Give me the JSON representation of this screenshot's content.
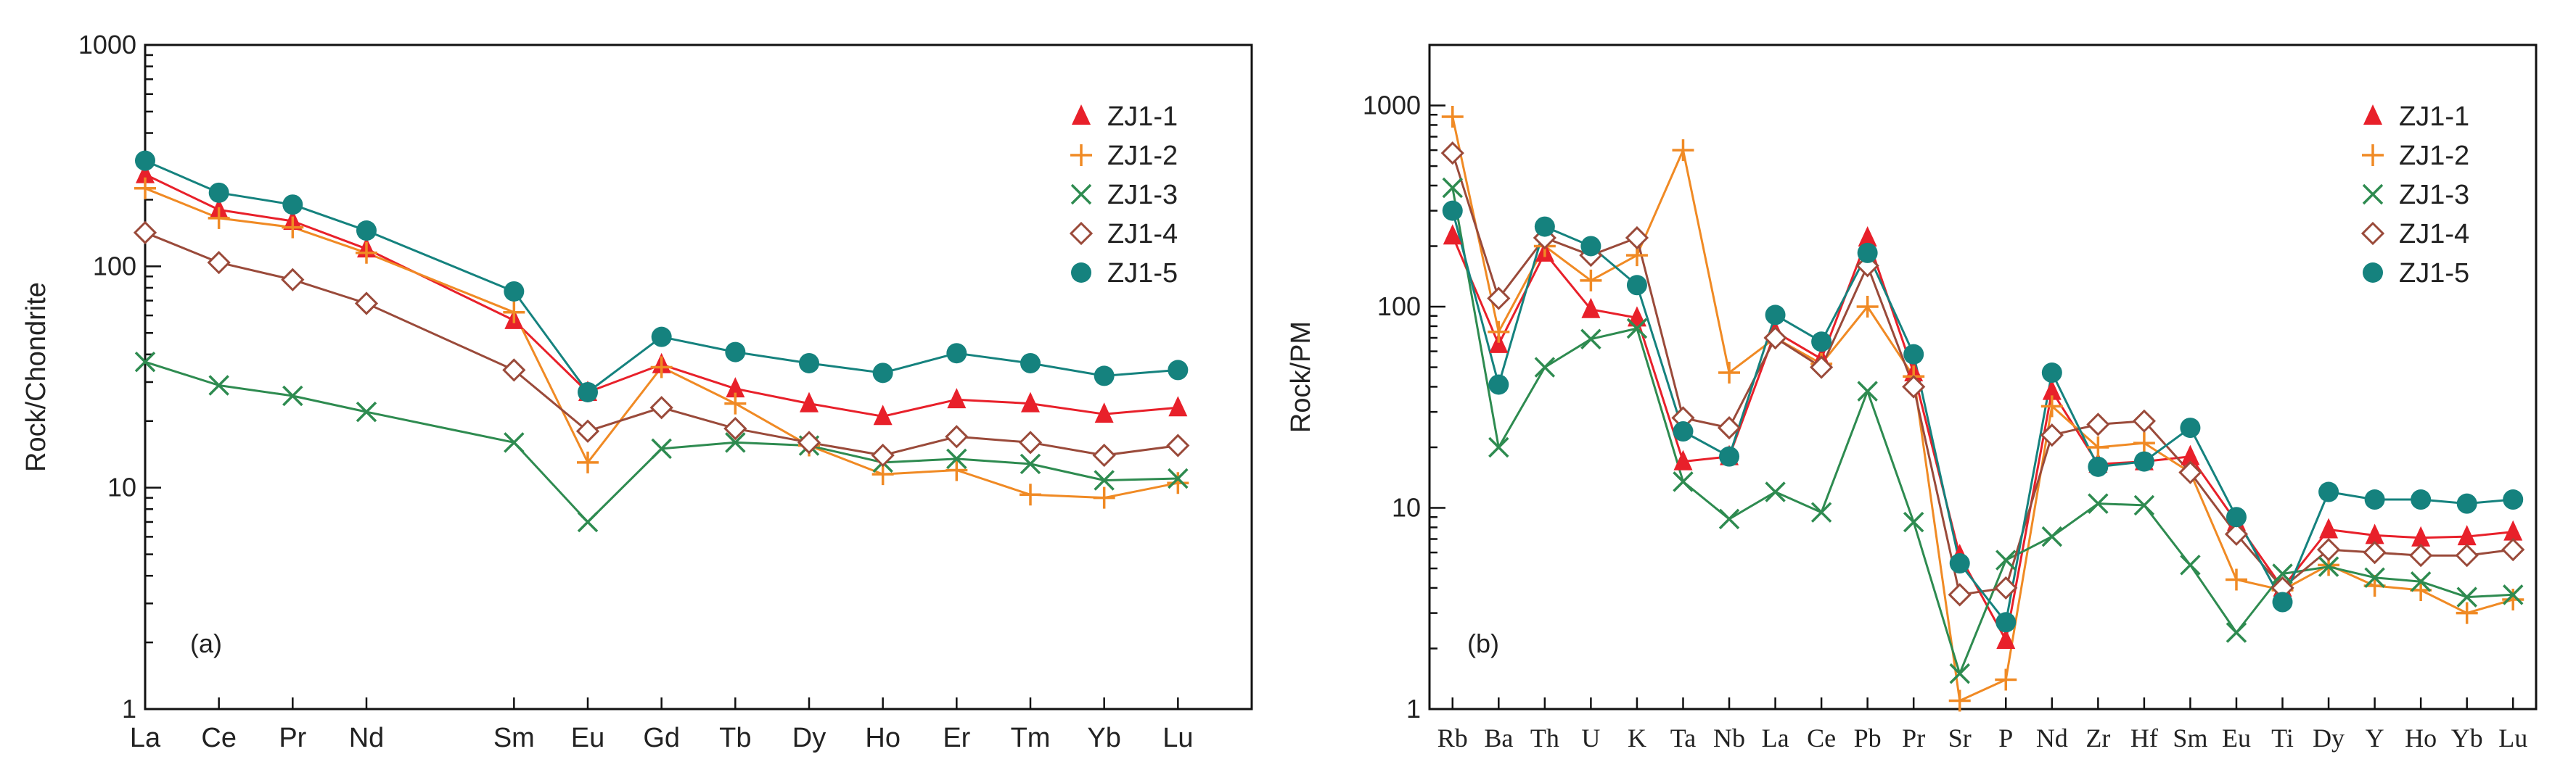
{
  "colors": {
    "ZJ1-1": "#e8202a",
    "ZJ1-2": "#f08a24",
    "ZJ1-3": "#2e8b50",
    "ZJ1-4": "#9a4a3a",
    "ZJ1-5": "#15827e"
  },
  "chart_data": [
    {
      "type": "line",
      "panel": "(a)",
      "ylabel": "Rock/Chondrite",
      "yscale": "log",
      "ylim": [
        1,
        1000
      ],
      "yticks": [
        "1",
        "10",
        "100",
        "1000"
      ],
      "categories": [
        "La",
        "Ce",
        "Pr",
        "Nd",
        "Sm",
        "Eu",
        "Gd",
        "Tb",
        "Dy",
        "Ho",
        "Er",
        "Tm",
        "Yb",
        "Lu"
      ],
      "category_positions": [
        1,
        2,
        3,
        4,
        6,
        7,
        8,
        9,
        10,
        11,
        12,
        13,
        14,
        15
      ],
      "legend_position": "top-right",
      "series": [
        {
          "name": "ZJ1-1",
          "marker": "triangle",
          "values": [
            260,
            180,
            160,
            120,
            57,
            27,
            36,
            28,
            24,
            21,
            25,
            24,
            21.5,
            23
          ]
        },
        {
          "name": "ZJ1-2",
          "marker": "plus",
          "values": [
            225,
            165,
            150,
            115,
            62,
            13,
            35,
            24,
            15.5,
            11.5,
            12,
            9.3,
            9,
            10.5
          ]
        },
        {
          "name": "ZJ1-3",
          "marker": "x",
          "values": [
            37,
            29,
            26,
            22,
            16,
            7,
            15,
            16,
            15.5,
            13,
            13.5,
            12.8,
            10.8,
            11
          ]
        },
        {
          "name": "ZJ1-4",
          "marker": "diamond",
          "values": [
            142,
            104,
            87,
            68,
            34,
            18,
            23,
            18.5,
            16,
            14,
            17,
            16,
            14,
            15.5
          ]
        },
        {
          "name": "ZJ1-5",
          "marker": "circle",
          "values": [
            300,
            215,
            190,
            145,
            77,
            27,
            48,
            41,
            36.5,
            33,
            40.5,
            36.5,
            32,
            34
          ]
        }
      ]
    },
    {
      "type": "line",
      "panel": "(b)",
      "ylabel": "Rock/PM",
      "yscale": "log",
      "ylim": [
        1,
        2000
      ],
      "yticks": [
        "1",
        "10",
        "100",
        "1000"
      ],
      "categories": [
        "Rb",
        "Ba",
        "Th",
        "U",
        "K",
        "Ta",
        "Nb",
        "La",
        "Ce",
        "Pb",
        "Pr",
        "Sr",
        "P",
        "Nd",
        "Zr",
        "Hf",
        "Sm",
        "Eu",
        "Ti",
        "Dy",
        "Y",
        "Ho",
        "Yb",
        "Lu"
      ],
      "legend_position": "top-right",
      "series": [
        {
          "name": "ZJ1-1",
          "marker": "triangle",
          "values": [
            225,
            65,
            185,
            97,
            88,
            17,
            18,
            75,
            55,
            220,
            47,
            5.8,
            2.2,
            38,
            16.5,
            17,
            18,
            8.5,
            4,
            7.8,
            7.3,
            7.1,
            7.2,
            7.6
          ]
        },
        {
          "name": "ZJ1-2",
          "marker": "plus",
          "values": [
            880,
            75,
            200,
            135,
            180,
            600,
            47,
            70,
            52,
            100,
            45,
            1.1,
            1.4,
            32,
            20,
            21,
            15,
            4.4,
            3.9,
            5.2,
            4.1,
            3.9,
            3,
            3.5
          ]
        },
        {
          "name": "ZJ1-3",
          "marker": "x",
          "values": [
            390,
            20,
            50,
            69,
            78,
            13.5,
            8.8,
            12,
            9.5,
            38,
            8.5,
            1.5,
            5.5,
            7.2,
            10.5,
            10.3,
            5.2,
            2.4,
            4.7,
            5.1,
            4.5,
            4.3,
            3.6,
            3.7
          ]
        },
        {
          "name": "ZJ1-4",
          "marker": "diamond",
          "values": [
            580,
            110,
            220,
            180,
            220,
            28,
            25,
            70,
            50,
            160,
            40,
            3.7,
            4,
            23,
            26,
            27,
            15,
            7.4,
            4,
            6.2,
            6,
            5.8,
            5.8,
            6.2
          ]
        },
        {
          "name": "ZJ1-5",
          "marker": "circle",
          "values": [
            300,
            41,
            250,
            200,
            128,
            24,
            18,
            91,
            67,
            185,
            58,
            5.3,
            2.7,
            47,
            16,
            17,
            25,
            9,
            3.4,
            12,
            11,
            11,
            10.5,
            11
          ]
        }
      ]
    }
  ]
}
